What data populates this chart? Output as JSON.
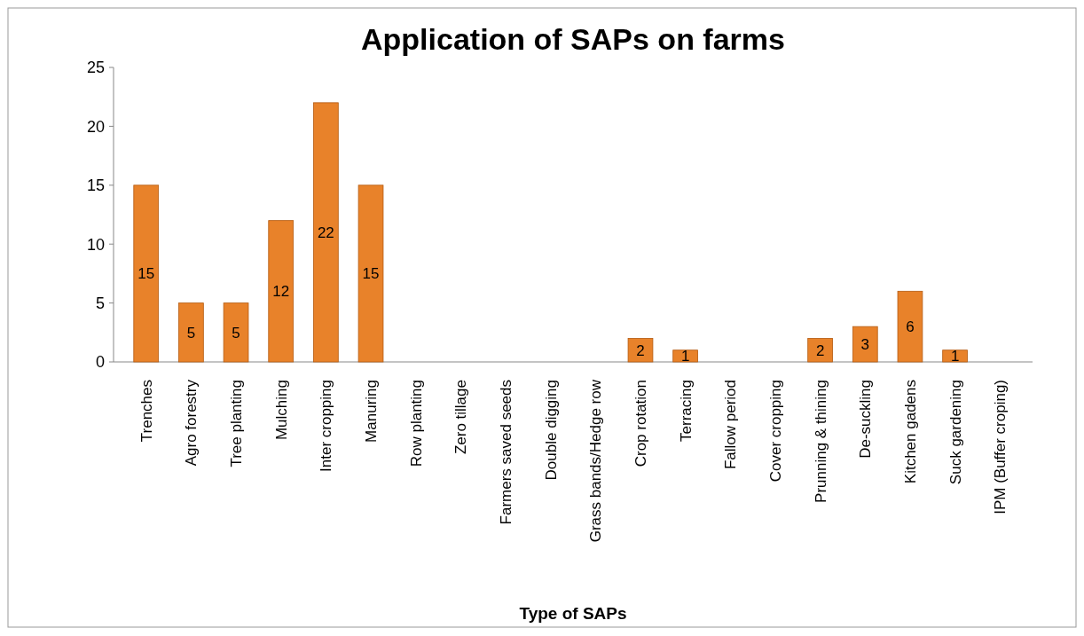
{
  "chart_data": {
    "type": "bar",
    "title": "Application of SAPs on farms",
    "xlabel": "Type of SAPs",
    "categories": [
      "Trenches",
      "Agro forestry",
      "Tree planting",
      "Mulching",
      "Inter cropping",
      "Manuring",
      "Row planting",
      "Zero tillage",
      "Farmers saved seeds",
      "Double digging",
      "Grass bands/Hedge row",
      "Crop rotation",
      "Terracing",
      "Fallow period",
      "Cover cropping",
      "Prunning & thining",
      "De-suckling",
      "Kitchen gadens",
      "Suck gardening",
      "IPM (Buffer croping)"
    ],
    "values": [
      15,
      5,
      5,
      12,
      22,
      15,
      0,
      0,
      0,
      0,
      0,
      2,
      1,
      0,
      0,
      2,
      3,
      6,
      1,
      0
    ],
    "value_labels": [
      "15",
      "5",
      "5",
      "12",
      "22",
      "15",
      null,
      null,
      null,
      null,
      null,
      "2",
      "1",
      null,
      null,
      "2",
      "3",
      "6",
      "1",
      null
    ],
    "color": "#e8822a",
    "ylim": [
      0,
      25
    ],
    "yticks": [
      0,
      5,
      10,
      15,
      20,
      25
    ],
    "grid": false
  }
}
